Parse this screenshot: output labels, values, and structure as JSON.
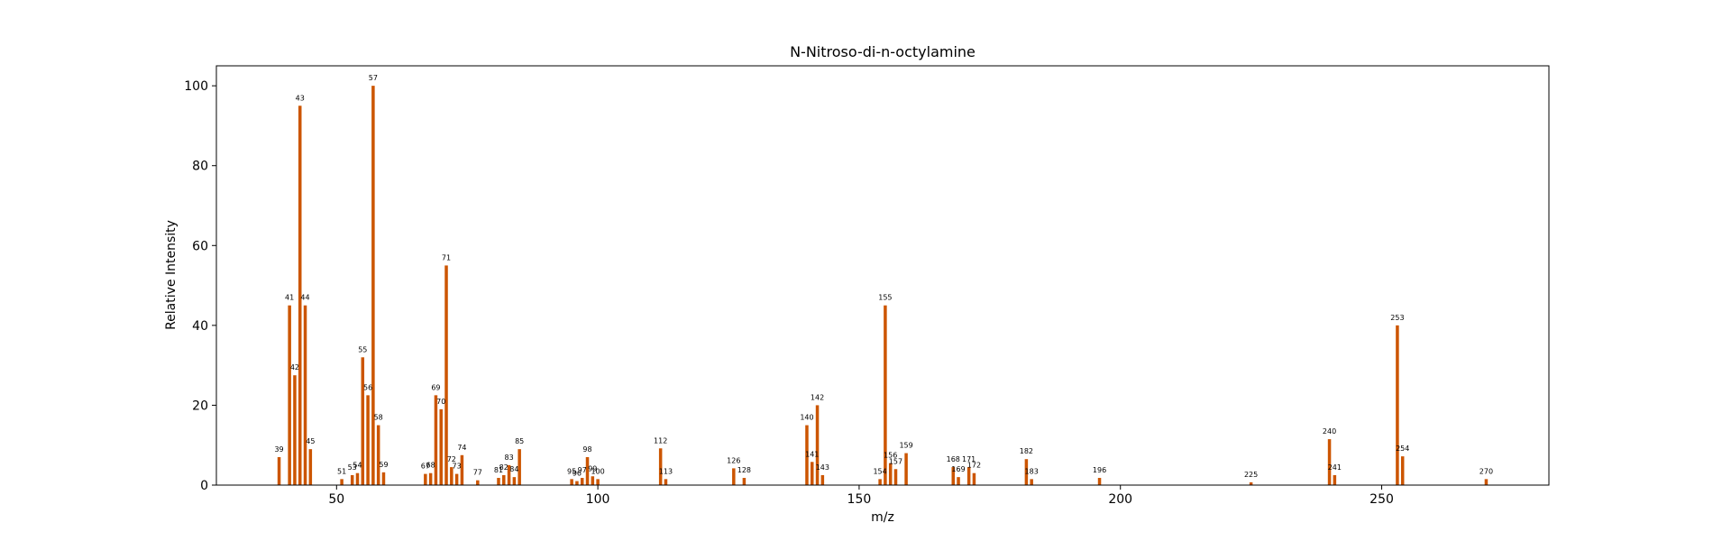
{
  "chart_data": {
    "type": "bar",
    "title": "N-Nitroso-di-n-octylamine",
    "xlabel": "m/z",
    "ylabel": "Relative Intensity",
    "xlim": [
      27,
      282
    ],
    "ylim": [
      0,
      105
    ],
    "xticks": [
      50,
      100,
      150,
      200,
      250
    ],
    "yticks": [
      0,
      20,
      40,
      60,
      80,
      100
    ],
    "grid": false,
    "bar_color": "#cc5500",
    "x": [
      39,
      41,
      42,
      43,
      44,
      45,
      51,
      53,
      54,
      55,
      56,
      57,
      58,
      59,
      67,
      68,
      69,
      70,
      71,
      72,
      73,
      74,
      77,
      81,
      82,
      83,
      84,
      85,
      95,
      96,
      97,
      98,
      99,
      100,
      112,
      113,
      126,
      128,
      140,
      141,
      142,
      143,
      154,
      155,
      156,
      157,
      159,
      168,
      169,
      171,
      172,
      182,
      183,
      196,
      225,
      240,
      241,
      253,
      254,
      270
    ],
    "values": [
      7,
      45,
      27.5,
      95,
      45,
      9,
      1.5,
      2.5,
      3,
      32,
      22.5,
      100,
      15,
      3.2,
      2.8,
      3,
      22.5,
      19,
      55,
      4.5,
      2.8,
      7.5,
      1.2,
      1.8,
      2.5,
      5,
      2,
      9,
      1.5,
      1,
      1.8,
      7,
      2.2,
      1.5,
      9.2,
      1.5,
      4.2,
      1.8,
      15,
      5.8,
      20,
      2.5,
      1.5,
      45,
      5.5,
      4,
      8,
      4.5,
      2,
      4.5,
      3,
      6.5,
      1.5,
      1.8,
      0.7,
      11.5,
      2.5,
      40,
      7.2,
      1.5
    ],
    "labels": [
      "39",
      "41",
      "42",
      "43",
      "44",
      "45",
      "51",
      "53",
      "54",
      "55",
      "56",
      "57",
      "58",
      "59",
      "67",
      "68",
      "69",
      "70",
      "71",
      "72",
      "73",
      "74",
      "77",
      "81",
      "82",
      "83",
      "84",
      "85",
      "95",
      "96",
      "97",
      "98",
      "99",
      "100",
      "112",
      "113",
      "126",
      "128",
      "140",
      "141",
      "142",
      "143",
      "154",
      "155",
      "156",
      "157",
      "159",
      "168",
      "169",
      "171",
      "172",
      "182",
      "183",
      "196",
      "225",
      "240",
      "241",
      "253",
      "254",
      "270"
    ]
  }
}
